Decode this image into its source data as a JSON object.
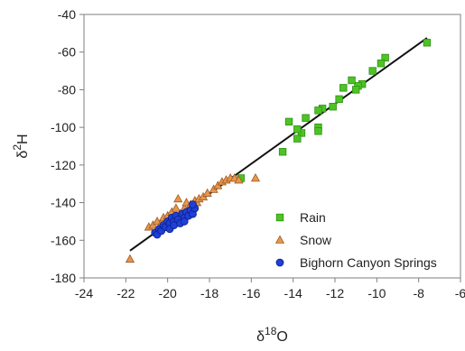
{
  "chart_data": {
    "type": "scatter",
    "xlabel": {
      "base": "δ",
      "sup": "18",
      "rest": "O"
    },
    "ylabel": {
      "base": "δ",
      "sup": "2",
      "rest": "H"
    },
    "xlim": [
      -24,
      -6
    ],
    "ylim": [
      -180,
      -40
    ],
    "xticks": [
      -24,
      -22,
      -20,
      -18,
      -16,
      -14,
      -12,
      -10,
      -8,
      -6
    ],
    "yticks": [
      -180,
      -160,
      -140,
      -120,
      -100,
      -80,
      -60,
      -40
    ],
    "xtick_labels": [
      "-24",
      "-22",
      "-20",
      "-18",
      "-16",
      "-14",
      "-12",
      "-10",
      "-8",
      "-6"
    ],
    "ytick_labels": [
      "-180",
      "-160",
      "-140",
      "-120",
      "-100",
      "-80",
      "-60",
      "-40"
    ],
    "grid": false,
    "legend_position": "bottom-right",
    "trendline": {
      "x": [
        -21.8,
        -7.6
      ],
      "y": [
        -165.5,
        -52.5
      ]
    },
    "series": [
      {
        "name": "Rain",
        "marker": "square",
        "color": "#4cc424",
        "stroke": "#2f8f14",
        "points": [
          [
            -7.6,
            -55
          ],
          [
            -9.6,
            -63
          ],
          [
            -9.8,
            -66
          ],
          [
            -10.2,
            -70
          ],
          [
            -10.7,
            -77
          ],
          [
            -10.9,
            -78
          ],
          [
            -11.0,
            -80
          ],
          [
            -11.2,
            -75
          ],
          [
            -11.6,
            -79
          ],
          [
            -11.8,
            -85
          ],
          [
            -12.1,
            -89
          ],
          [
            -12.6,
            -90
          ],
          [
            -12.8,
            -91
          ],
          [
            -12.8,
            -100
          ],
          [
            -12.8,
            -102
          ],
          [
            -13.4,
            -95
          ],
          [
            -13.6,
            -103
          ],
          [
            -13.8,
            -101
          ],
          [
            -13.8,
            -106
          ],
          [
            -14.2,
            -97
          ],
          [
            -14.5,
            -113
          ],
          [
            -16.5,
            -127
          ]
        ]
      },
      {
        "name": "Snow",
        "marker": "triangle",
        "color": "#e8964a",
        "stroke": "#9a5a25",
        "points": [
          [
            -21.8,
            -170
          ],
          [
            -20.9,
            -153
          ],
          [
            -20.7,
            -152
          ],
          [
            -20.5,
            -150
          ],
          [
            -20.3,
            -151
          ],
          [
            -20.2,
            -148
          ],
          [
            -20.0,
            -147
          ],
          [
            -19.9,
            -149
          ],
          [
            -19.8,
            -145
          ],
          [
            -19.6,
            -143
          ],
          [
            -19.5,
            -138
          ],
          [
            -19.4,
            -146
          ],
          [
            -19.2,
            -143
          ],
          [
            -19.1,
            -140
          ],
          [
            -19.0,
            -144
          ],
          [
            -18.9,
            -141
          ],
          [
            -18.8,
            -142
          ],
          [
            -18.7,
            -139
          ],
          [
            -18.6,
            -140
          ],
          [
            -18.5,
            -138
          ],
          [
            -18.3,
            -137
          ],
          [
            -18.1,
            -135
          ],
          [
            -17.8,
            -133
          ],
          [
            -17.6,
            -131
          ],
          [
            -17.4,
            -129
          ],
          [
            -17.2,
            -128
          ],
          [
            -17.0,
            -127
          ],
          [
            -16.8,
            -127
          ],
          [
            -16.6,
            -128
          ],
          [
            -15.8,
            -127
          ]
        ]
      },
      {
        "name": "Bighorn Canyon Springs",
        "marker": "circle",
        "color": "#1f3fd6",
        "stroke": "#0b1f8a",
        "points": [
          [
            -20.6,
            -156
          ],
          [
            -20.5,
            -157
          ],
          [
            -20.4,
            -154
          ],
          [
            -20.3,
            -155
          ],
          [
            -20.2,
            -152
          ],
          [
            -20.1,
            -153
          ],
          [
            -20.0,
            -150
          ],
          [
            -19.9,
            -151
          ],
          [
            -19.9,
            -154
          ],
          [
            -19.8,
            -148
          ],
          [
            -19.7,
            -150
          ],
          [
            -19.7,
            -152
          ],
          [
            -19.6,
            -147
          ],
          [
            -19.5,
            -149
          ],
          [
            -19.4,
            -151
          ],
          [
            -19.3,
            -146
          ],
          [
            -19.2,
            -148
          ],
          [
            -19.2,
            -150
          ],
          [
            -19.1,
            -145
          ],
          [
            -19.0,
            -147
          ],
          [
            -18.9,
            -144
          ],
          [
            -18.8,
            -146
          ],
          [
            -18.7,
            -143
          ],
          [
            -18.8,
            -141
          ]
        ]
      }
    ]
  }
}
